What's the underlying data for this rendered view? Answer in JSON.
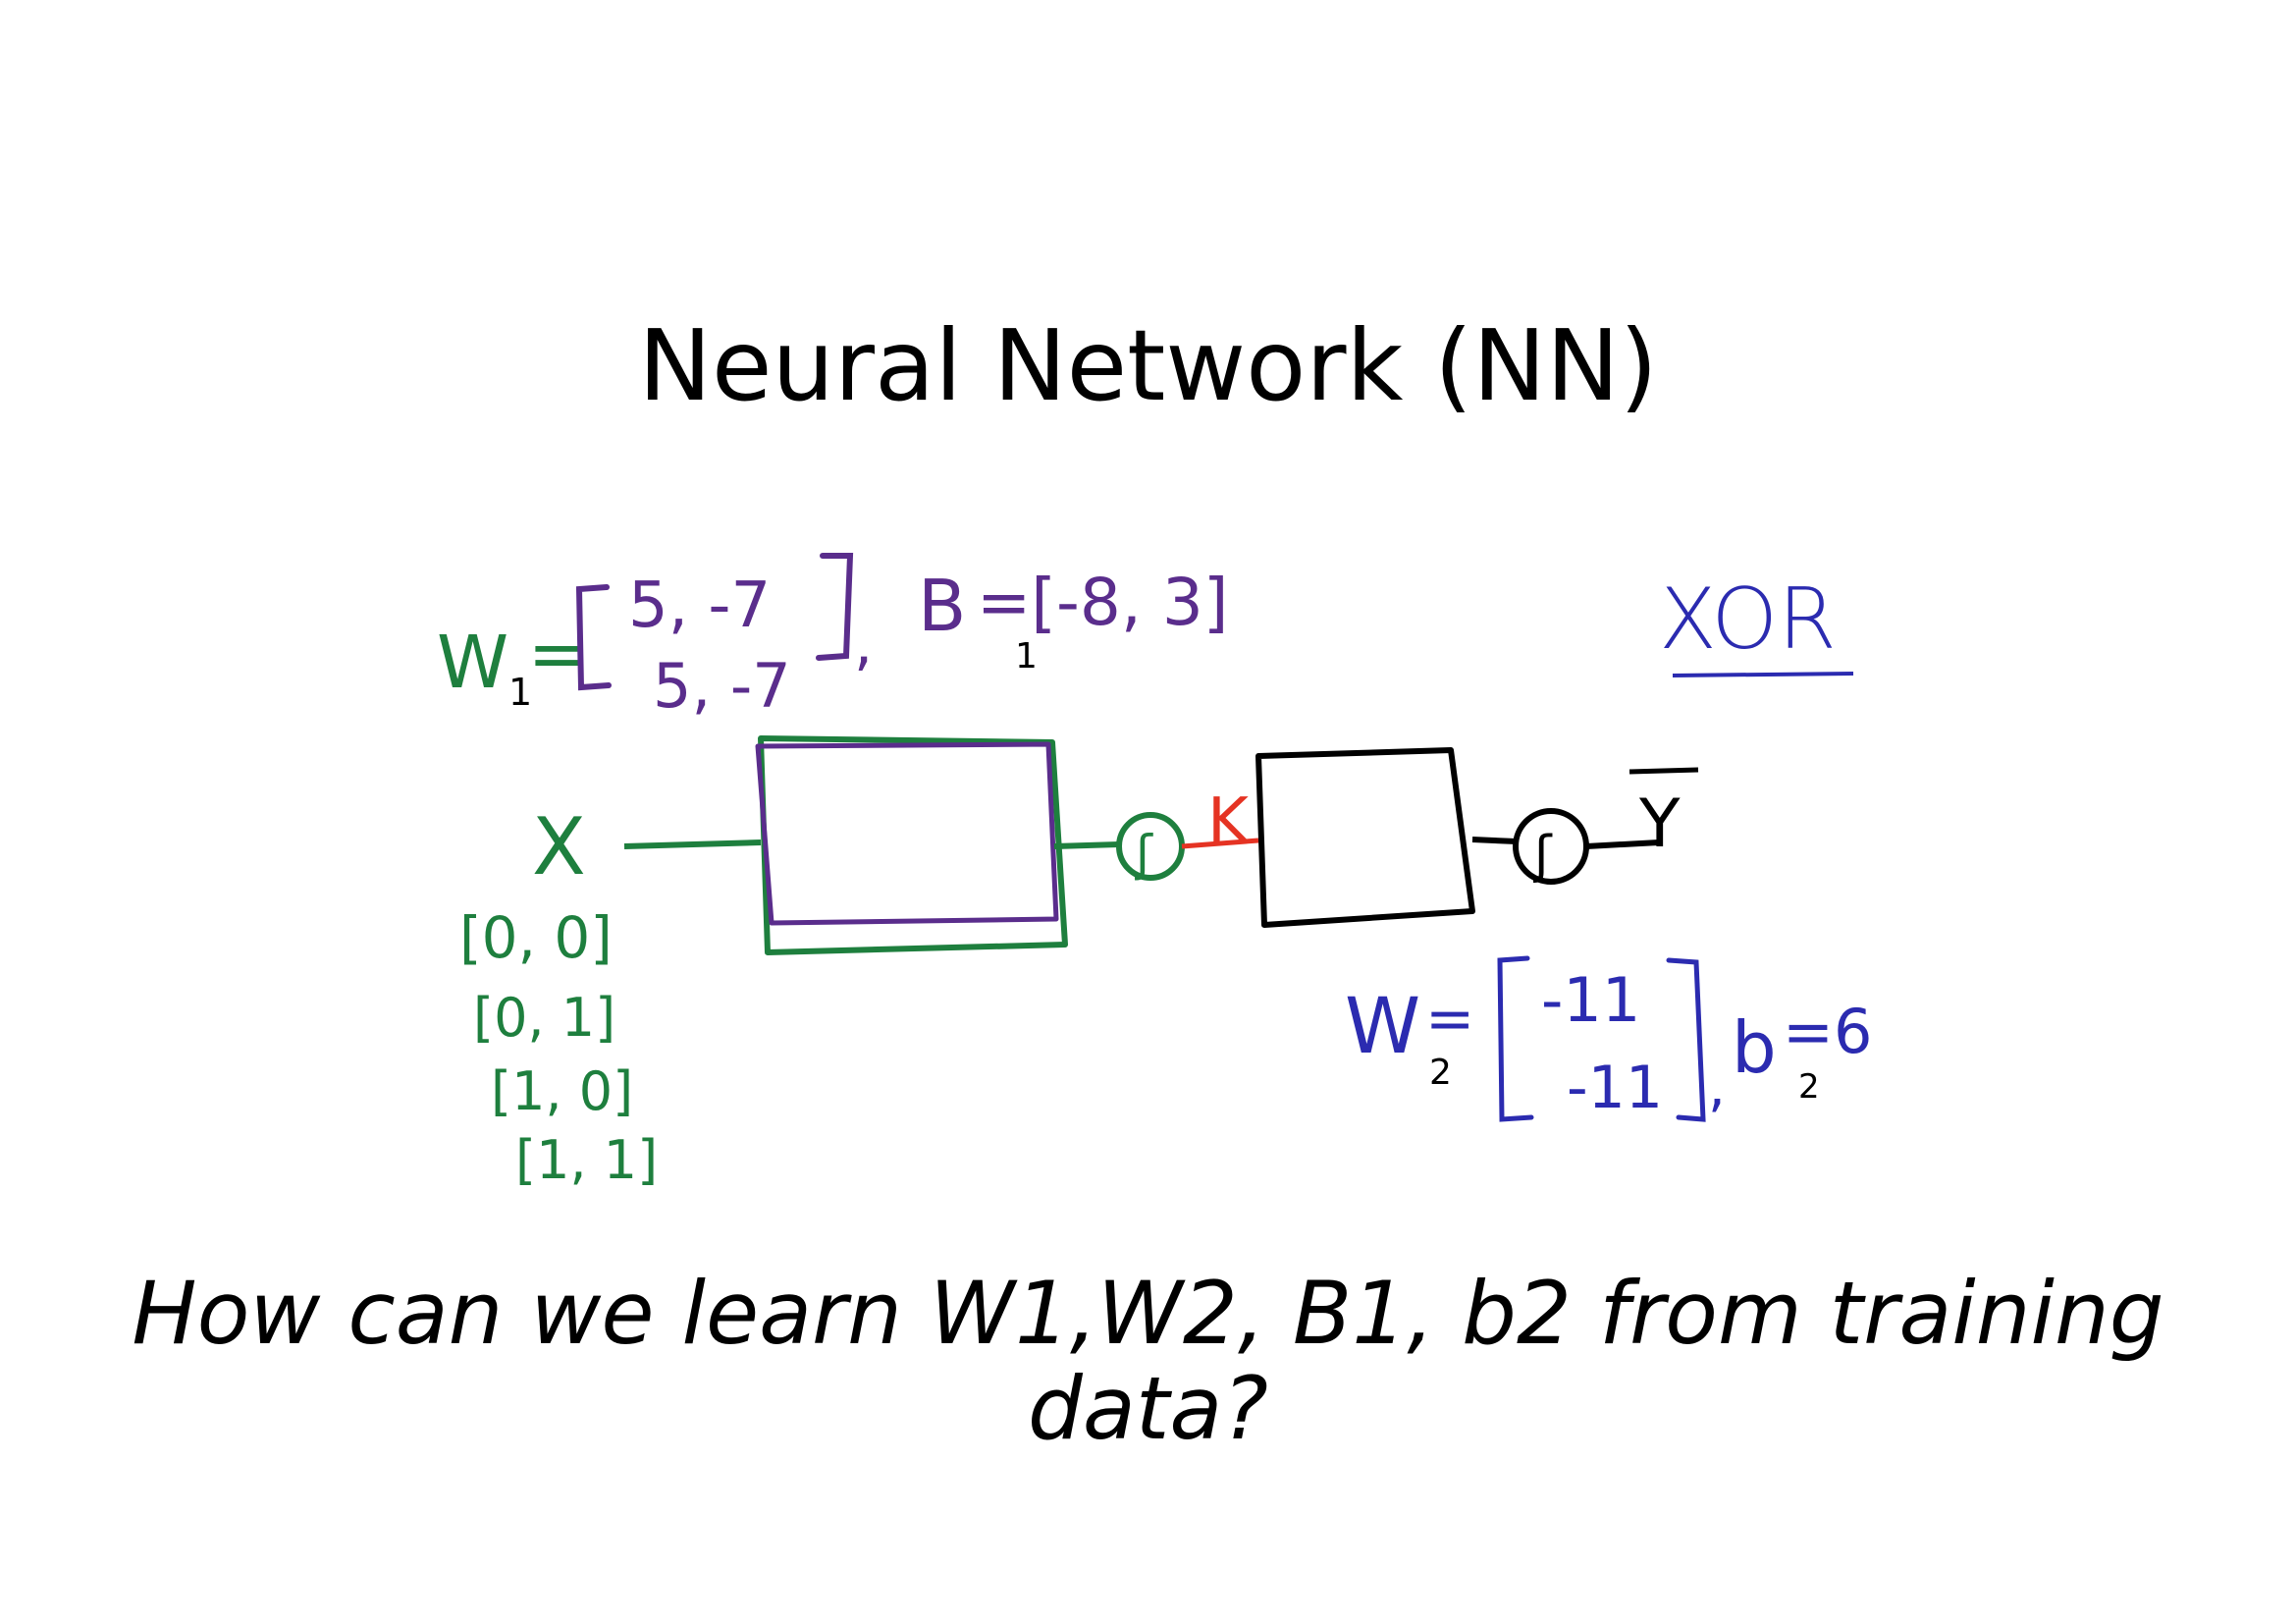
{
  "slide": {
    "title": "Neural Network (NN)",
    "question": "How can we learn W1,W2, B1, b2 from training data?"
  },
  "colors": {
    "green": "#1e7f3e",
    "purple": "#5a2d8c",
    "blue": "#2b2bb0",
    "red": "#e53323",
    "black": "#000000"
  },
  "annotations": {
    "w1_label": "W",
    "w1_sub": "1",
    "w1_eq": "=",
    "w1_row1": "5, -7",
    "w1_row2": "5, -7",
    "b1_label": "B",
    "b1_sub": "1",
    "b1_value": "=[-8, 3]",
    "xor_label": "XOR",
    "x_label": "X",
    "inputs": [
      "[0, 0]",
      "[0, 1]",
      "[1, 0]",
      "[1, 1]"
    ],
    "activation_label": "K",
    "output_label": "Y",
    "w2_label": "W",
    "w2_sub": "2",
    "w2_eq": "=",
    "w2_row1": "-11",
    "w2_row2": "-11",
    "b2_label": "b",
    "b2_sub": "2",
    "b2_value": "=6"
  }
}
